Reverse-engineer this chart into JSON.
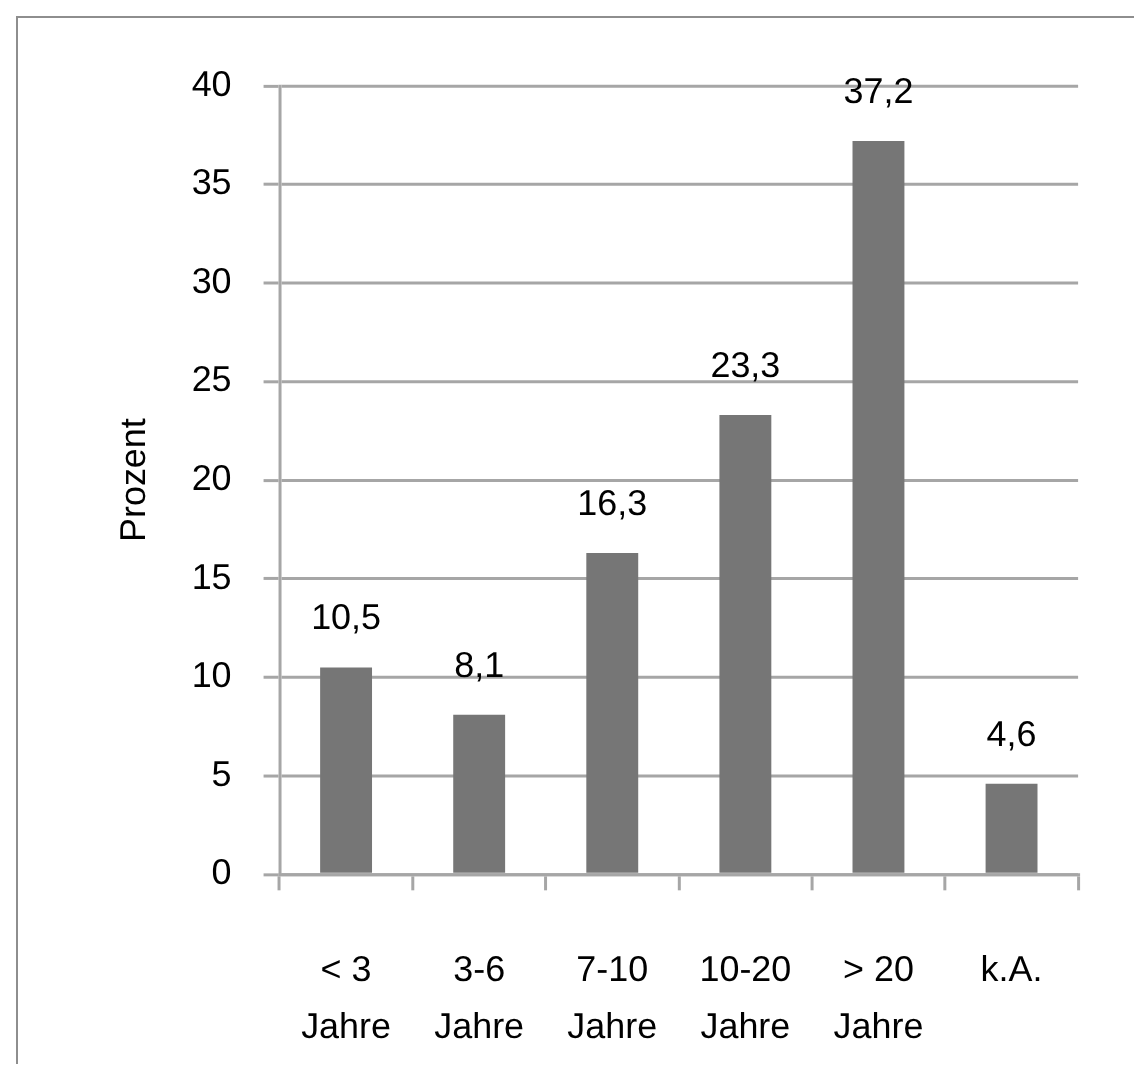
{
  "chart_data": {
    "type": "bar",
    "ylabel": "Prozent",
    "categories": [
      "< 3 Jahre",
      "3-6 Jahre",
      "7-10 Jahre",
      "10-20 Jahre",
      "> 20 Jahre",
      "k.A."
    ],
    "values": [
      10.5,
      8.1,
      16.3,
      23.3,
      37.2,
      4.6
    ],
    "value_labels": [
      "10,5",
      "8,1",
      "16,3",
      "23,3",
      "37,2",
      "4,6"
    ],
    "color": "#767676",
    "ylim": [
      0,
      40
    ],
    "yticks": [
      0,
      5,
      10,
      15,
      20,
      25,
      30,
      35,
      40
    ],
    "grid": "y",
    "legend": false
  }
}
